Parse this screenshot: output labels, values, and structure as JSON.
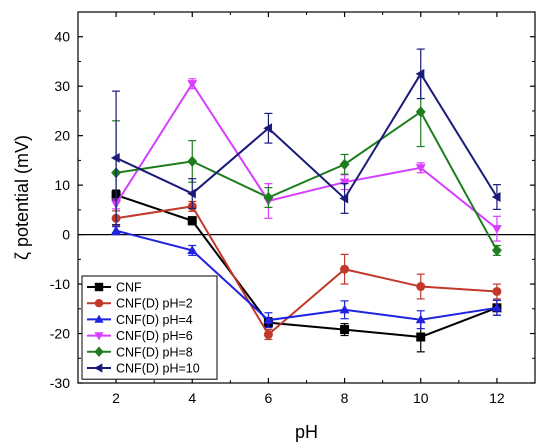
{
  "chart_data": {
    "type": "line",
    "xlabel": "pH",
    "ylabel": "ζ potential (mV)",
    "x": [
      2,
      4,
      6,
      8,
      10,
      12
    ],
    "xlim": [
      1,
      13
    ],
    "ylim": [
      -30,
      45
    ],
    "xticks": [
      "2",
      "4",
      "6",
      "8",
      "10",
      "12"
    ],
    "yticks": [
      "-30",
      "-20",
      "-10",
      "0",
      "10",
      "20",
      "30",
      "40"
    ],
    "zero_line": true,
    "legend_position": "bottom-left",
    "series": [
      {
        "name": "CNF",
        "color": "#000000",
        "marker": "square",
        "values": [
          8.0,
          2.8,
          -17.8,
          -19.2,
          -20.7,
          -14.8
        ],
        "errors": [
          1.0,
          0.8,
          1.0,
          1.2,
          3.0,
          1.5
        ]
      },
      {
        "name": "CNF(D) pH=2",
        "color": "#c0392b",
        "marker": "circle",
        "values": [
          3.3,
          5.7,
          -20.2,
          -7.0,
          -10.5,
          -11.5
        ],
        "errors": [
          1.5,
          1.0,
          1.0,
          3.0,
          2.5,
          1.5
        ]
      },
      {
        "name": "CNF(D) pH=4",
        "color": "#1f23e0",
        "marker": "triangle-up",
        "values": [
          0.8,
          -3.2,
          -17.3,
          -15.2,
          -17.2,
          -14.8
        ],
        "errors": [
          0.8,
          1.0,
          1.5,
          1.8,
          1.8,
          1.5
        ]
      },
      {
        "name": "CNF(D) pH=6",
        "color": "#d63fff",
        "marker": "triangle-down",
        "values": [
          6.2,
          30.5,
          6.8,
          10.6,
          13.5,
          1.2
        ],
        "errors": [
          1.0,
          1.0,
          3.5,
          1.5,
          1.0,
          2.5
        ]
      },
      {
        "name": "CNF(D) pH=8",
        "color": "#1e7d1e",
        "marker": "diamond",
        "values": [
          12.5,
          14.8,
          7.5,
          14.2,
          24.8,
          -3.2
        ],
        "errors": [
          10.5,
          4.2,
          2.0,
          2.0,
          7.0,
          1.0
        ]
      },
      {
        "name": "CNF(D) pH=10",
        "color": "#1a1a7a",
        "marker": "triangle-left",
        "values": [
          15.5,
          8.3,
          21.5,
          7.3,
          32.5,
          7.6
        ],
        "errors": [
          13.5,
          3.0,
          3.0,
          3.0,
          5.0,
          2.5
        ]
      }
    ]
  }
}
